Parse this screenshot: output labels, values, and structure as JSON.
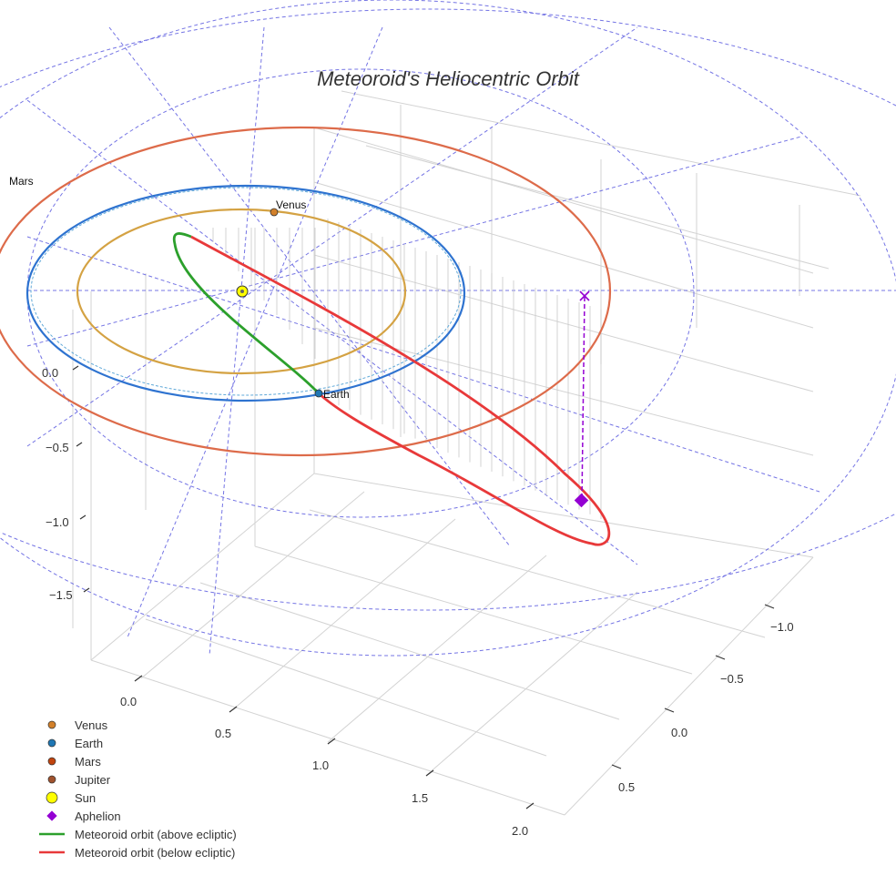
{
  "chart_data": {
    "type": "line",
    "title": "Meteoroid's Heliocentric Orbit",
    "axes": {
      "x_ticks": [
        "0.0",
        "0.5",
        "1.0",
        "1.5",
        "2.0"
      ],
      "y_ticks": [
        "−1.0",
        "−0.5",
        "0.0",
        "0.5"
      ],
      "z_ticks": [
        "0.0",
        "−0.5",
        "−1.0",
        "−1.5"
      ],
      "grid": true
    },
    "planet_labels": [
      {
        "name": "Venus"
      },
      {
        "name": "Earth"
      },
      {
        "name": "Mars"
      }
    ],
    "legend": {
      "placement": "bottom-left",
      "entries": [
        {
          "label": "Venus",
          "marker": "circle",
          "color": "#d2802a"
        },
        {
          "label": "Earth",
          "marker": "circle",
          "color": "#1f77b4"
        },
        {
          "label": "Mars",
          "marker": "circle",
          "color": "#c1440e"
        },
        {
          "label": "Jupiter",
          "marker": "circle",
          "color": "#a0522d"
        },
        {
          "label": "Sun",
          "marker": "circle-large",
          "color": "#ffff00"
        },
        {
          "label": "Aphelion",
          "marker": "diamond",
          "color": "#9400d3"
        },
        {
          "label": "Meteoroid orbit (above ecliptic)",
          "marker": "line",
          "color": "#2ca02c"
        },
        {
          "label": "Meteoroid orbit (below ecliptic)",
          "marker": "line",
          "color": "#e8393a"
        }
      ]
    },
    "series": [
      {
        "name": "Meteoroid orbit (above ecliptic)",
        "color": "#2ca02c"
      },
      {
        "name": "Meteoroid orbit (below ecliptic)",
        "color": "#e8393a"
      }
    ],
    "colors": {
      "venus_orbit": "#d4a243",
      "earth_orbit": "#2e73d0",
      "mars_orbit": "#dd6b4a",
      "guide_lines": "#5c5ce0",
      "aphelion": "#9400d3",
      "grid": "#d3d3d3"
    }
  }
}
